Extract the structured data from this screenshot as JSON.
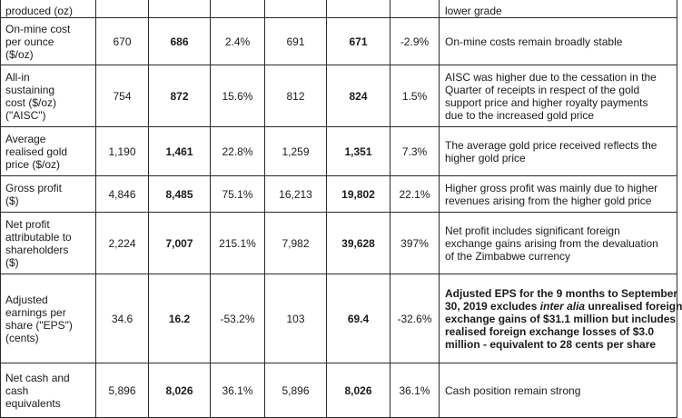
{
  "rows": [
    {
      "label_lines": [
        "produced (oz)"
      ],
      "values": [
        "",
        "",
        "",
        "",
        "",
        ""
      ],
      "comment_lines": [
        "",
        "lower grade"
      ]
    },
    {
      "label_lines": [
        "On-mine cost",
        "per ounce",
        "($/oz)"
      ],
      "values": [
        "670",
        "686",
        "2.4%",
        "691",
        "671",
        "-2.9%"
      ],
      "comment_lines": [
        "On-mine costs remain broadly stable"
      ]
    },
    {
      "label_lines": [
        "All-in",
        "sustaining",
        "cost ($/oz)",
        "(\"AISC\")"
      ],
      "values": [
        "754",
        "872",
        "15.6%",
        "812",
        "824",
        "1.5%"
      ],
      "comment_lines": [
        "AISC was higher due to the cessation in the",
        "Quarter of receipts in respect of the gold",
        "support price and higher royalty payments",
        "due to the increased gold price"
      ]
    },
    {
      "label_lines": [
        "Average",
        "realised gold",
        "price ($/oz)"
      ],
      "values": [
        "1,190",
        "1,461",
        "22.8%",
        "1,259",
        "1,351",
        "7.3%"
      ],
      "comment_lines": [
        "The average gold price received reflects the",
        "higher gold price"
      ]
    },
    {
      "label_lines": [
        "Gross profit",
        "($)"
      ],
      "values": [
        "4,846",
        "8,485",
        "75.1%",
        "16,213",
        "19,802",
        "22.1%"
      ],
      "comment_lines": [
        "Higher gross profit was mainly due to higher",
        "revenues arising from the higher gold price"
      ]
    },
    {
      "label_lines": [
        "Net profit",
        "attributable to",
        "shareholders",
        "($)"
      ],
      "values": [
        "2,224",
        "7,007",
        "215.1%",
        "7,982",
        "39,628",
        "397%"
      ],
      "comment_lines": [
        "Net profit includes significant foreign",
        "exchange gains arising from the devaluation",
        "of the Zimbabwe currency"
      ]
    },
    {
      "label_lines": [
        "Adjusted",
        "earnings per",
        "share (\"EPS\")",
        "(cents)"
      ],
      "values": [
        "34.6",
        "16.2",
        "-53.2%",
        "103",
        "69.4",
        "-32.6%"
      ],
      "comment_parts": {
        "l1": "Adjusted EPS for the 9 months to September",
        "l2": "30, 2019 excludes ",
        "l2_italic": "inter alia",
        "l2_end": " unrealised foreign",
        "l3": "exchange gains of $31.1 million but includes",
        "l4": "realised foreign exchange losses of $3.0",
        "l5": "million - equivalent to 28 cents per share"
      }
    },
    {
      "label_lines": [
        "Net cash and",
        "cash",
        "equivalents"
      ],
      "values": [
        "5,896",
        "8,026",
        "36.1%",
        "5,896",
        "8,026",
        "36.1%"
      ],
      "comment_lines": [
        "Cash position remain strong"
      ]
    }
  ]
}
